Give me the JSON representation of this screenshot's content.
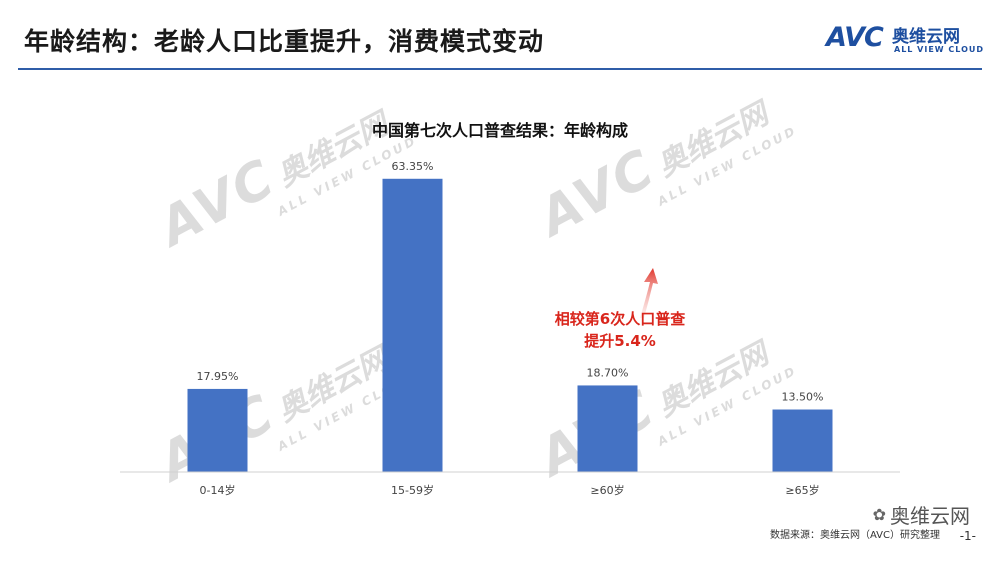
{
  "page": {
    "title": "年龄结构：老龄人口比重提升，消费模式变动",
    "page_number": "-1-"
  },
  "brand": {
    "mark": "AVC",
    "name_cn": "奥维云网",
    "name_en": "ALL VIEW CLOUD",
    "color": "#1e4fa0"
  },
  "watermark": {
    "mark": "AVC",
    "name_cn": "奥维云网",
    "name_en": "ALL VIEW CLOUD"
  },
  "chart_data": {
    "type": "bar",
    "title": "中国第七次人口普查结果：年龄构成",
    "categories": [
      "0-14岁",
      "15-59岁",
      "≥60岁",
      "≥65岁"
    ],
    "values": [
      17.95,
      63.35,
      18.7,
      13.5
    ],
    "value_labels": [
      "17.95%",
      "63.35%",
      "18.70%",
      "13.50%"
    ],
    "unit": "%",
    "ylim": [
      0,
      70
    ],
    "bar_color": "#4472c4",
    "grid": false,
    "legend": "none",
    "annotation": {
      "lines": [
        "相较第6次人口普查",
        "提升5.4%"
      ],
      "color": "#d9261c",
      "target_category": "≥60岁"
    }
  },
  "footer": {
    "source": "数据来源：奥维云网（AVC）研究整理",
    "wechat": "奥维云网",
    "wechat_icon": "wechat-icon"
  }
}
